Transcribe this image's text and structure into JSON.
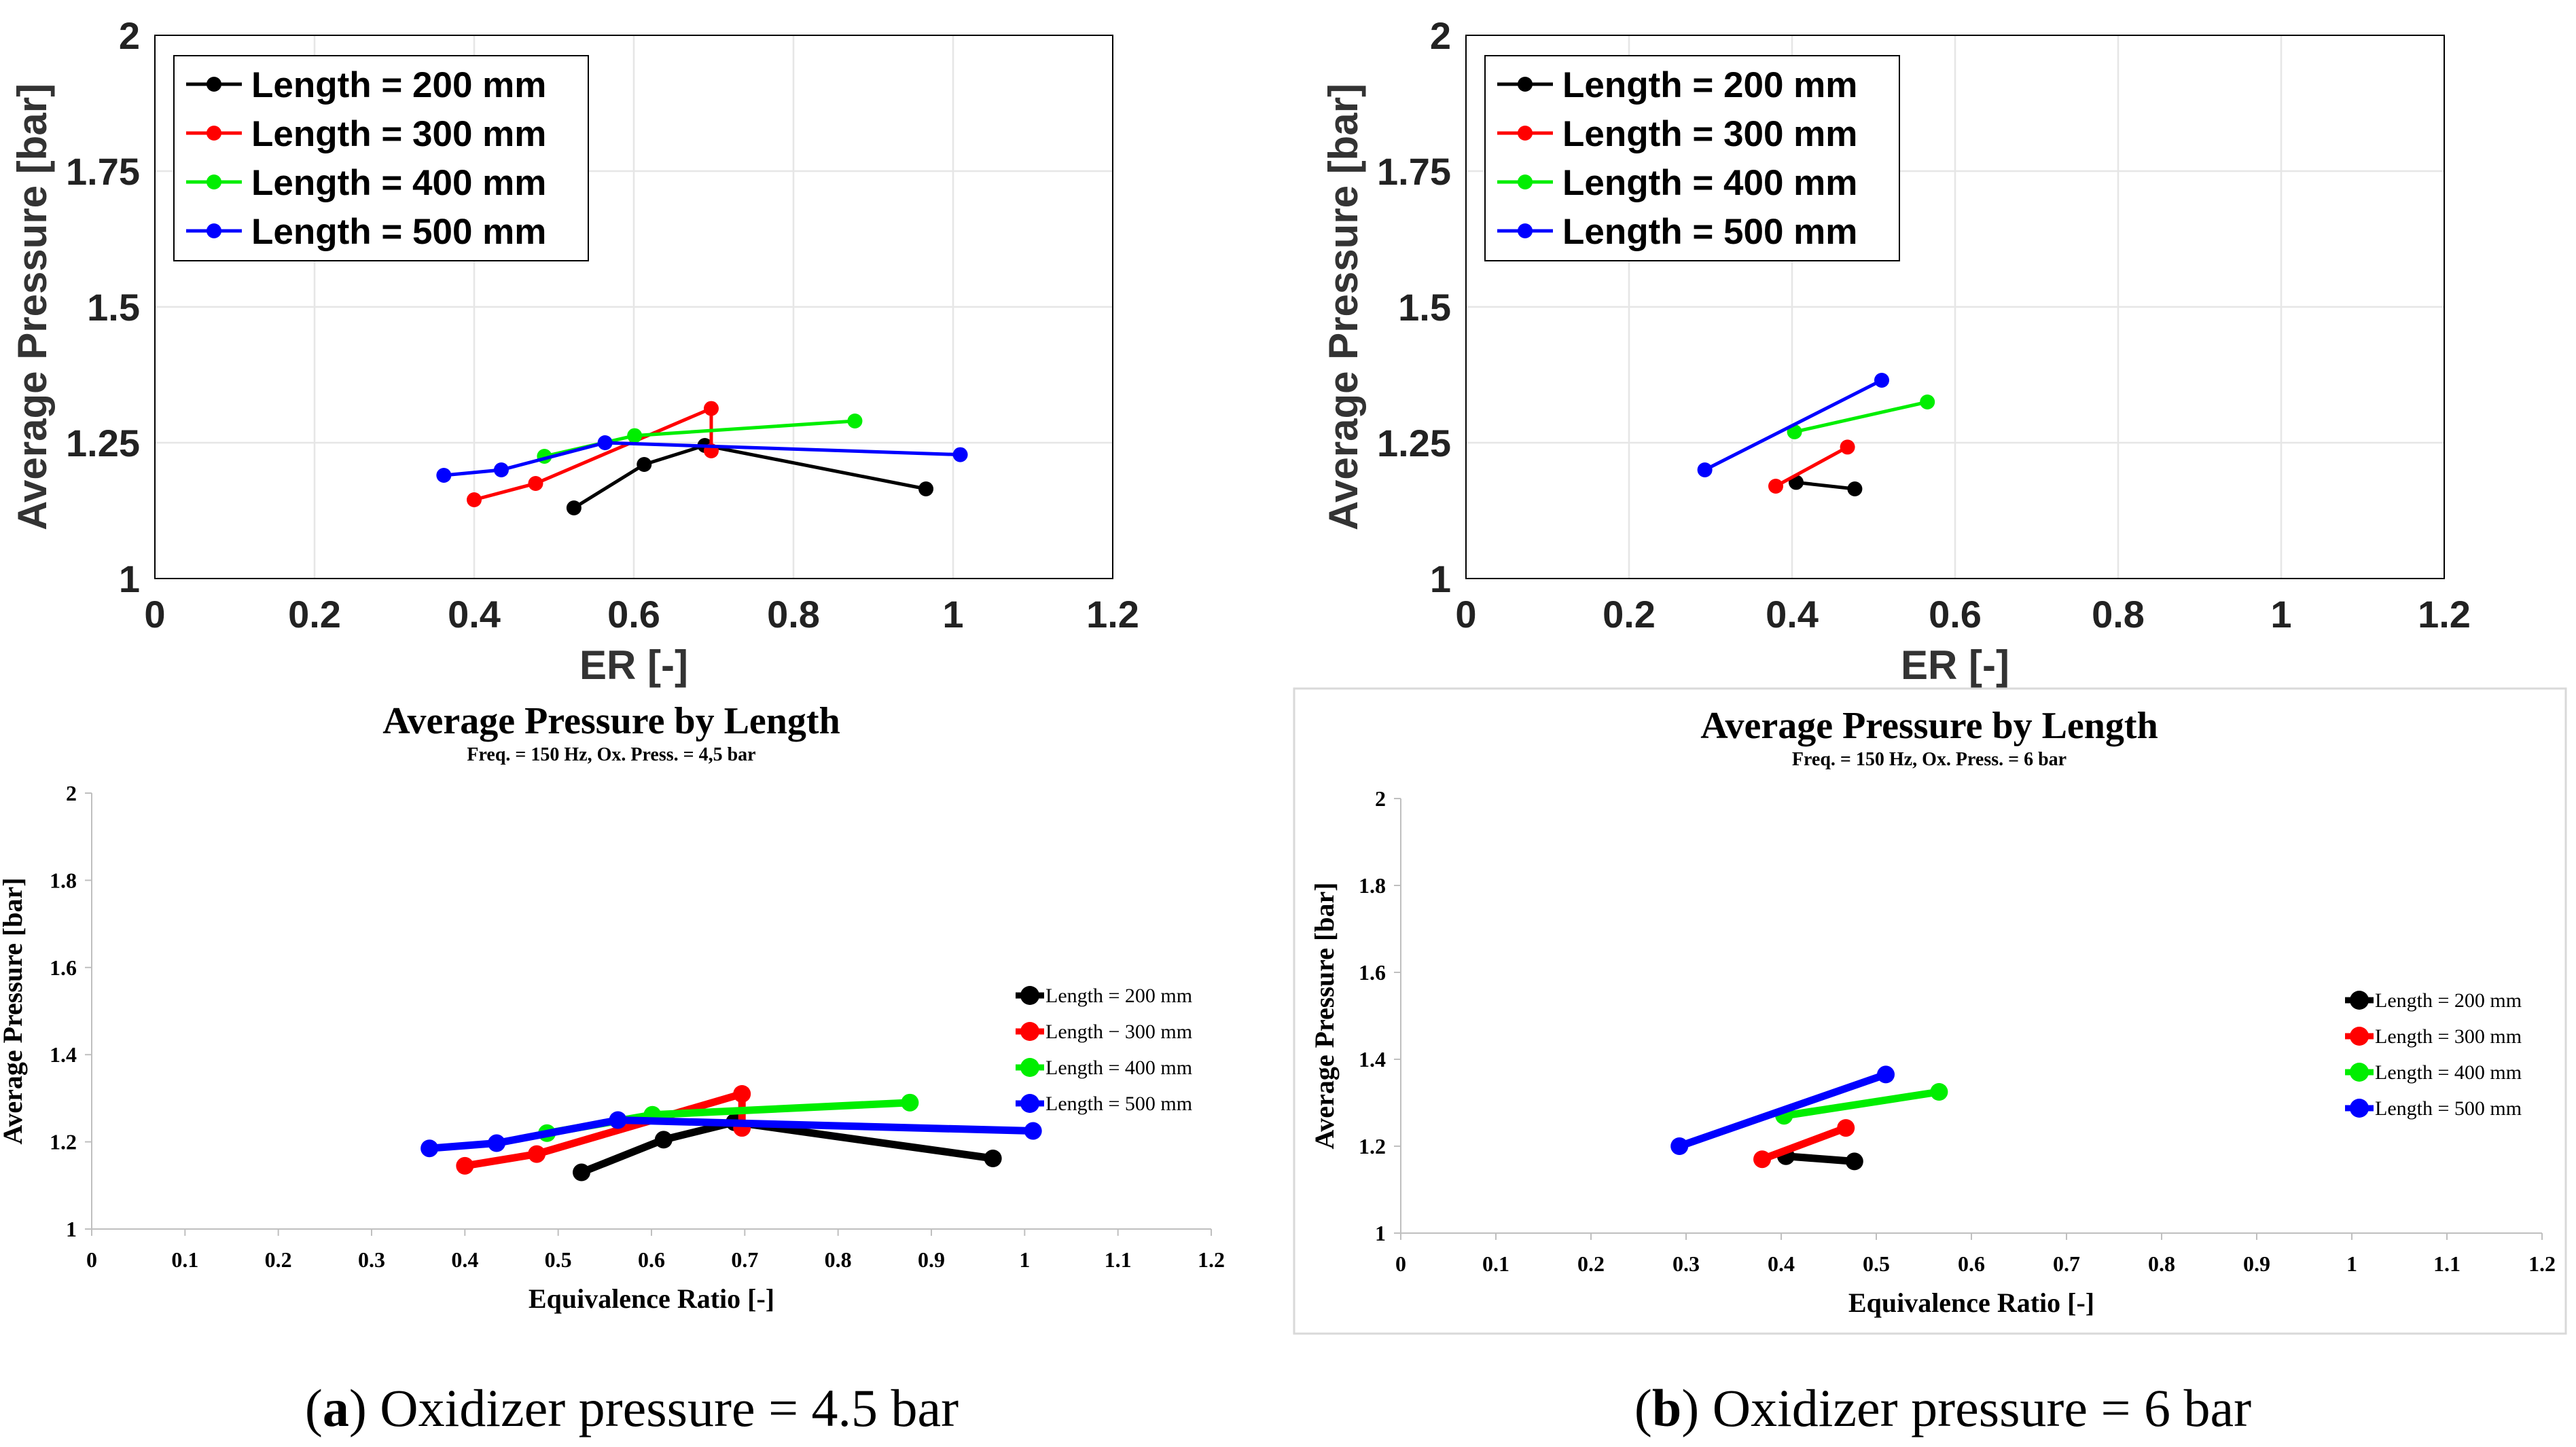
{
  "captions": {
    "a_letter": "a",
    "a_text": ") Oxidizer pressure = 4.5 bar",
    "a_open": "(",
    "b_letter": "b",
    "b_text": ") Oxidizer pressure = 6 bar",
    "b_open": "("
  },
  "chart_data": [
    {
      "id": "matlab-a",
      "type": "line",
      "title": "",
      "xlabel": "ER [-]",
      "ylabel": "Average Pressure [bar]",
      "xlim": [
        0,
        1.2
      ],
      "ylim": [
        1,
        2
      ],
      "xticks": [
        "0",
        "0.2",
        "0.4",
        "0.6",
        "0.8",
        "1",
        "1.2"
      ],
      "yticks": [
        "1",
        "1.25",
        "1.5",
        "1.75",
        "2"
      ],
      "grid": true,
      "legend_position": "top-left",
      "series": [
        {
          "name": "Length = 200 mm",
          "color": "#000000",
          "x": [
            0.525,
            0.613,
            0.689,
            0.966
          ],
          "y": [
            1.13,
            1.21,
            1.245,
            1.165
          ]
        },
        {
          "name": "Length = 300 mm",
          "color": "#ff0000",
          "x": [
            0.4,
            0.477,
            0.697,
            0.697
          ],
          "y": [
            1.145,
            1.175,
            1.313,
            1.235
          ]
        },
        {
          "name": "Length = 400 mm",
          "color": "#00ee00",
          "x": [
            0.488,
            0.601,
            0.877
          ],
          "y": [
            1.225,
            1.263,
            1.29
          ]
        },
        {
          "name": "Length = 500 mm",
          "color": "#0000ff",
          "x": [
            0.362,
            0.434,
            0.564,
            1.009
          ],
          "y": [
            1.19,
            1.2,
            1.25,
            1.228
          ]
        }
      ]
    },
    {
      "id": "matlab-b",
      "type": "line",
      "title": "",
      "xlabel": "ER [-]",
      "ylabel": "Average Pressure [bar]",
      "xlim": [
        0,
        1.2
      ],
      "ylim": [
        1,
        2
      ],
      "xticks": [
        "0",
        "0.2",
        "0.4",
        "0.6",
        "0.8",
        "1",
        "1.2"
      ],
      "yticks": [
        "1",
        "1.25",
        "1.5",
        "1.75",
        "2"
      ],
      "grid": true,
      "legend_position": "top-left",
      "series": [
        {
          "name": "Length = 200 mm",
          "color": "#000000",
          "x": [
            0.405,
            0.477
          ],
          "y": [
            1.177,
            1.165
          ]
        },
        {
          "name": "Length = 300 mm",
          "color": "#ff0000",
          "x": [
            0.38,
            0.468
          ],
          "y": [
            1.17,
            1.242
          ]
        },
        {
          "name": "Length = 400 mm",
          "color": "#00ee00",
          "x": [
            0.403,
            0.566
          ],
          "y": [
            1.27,
            1.325
          ]
        },
        {
          "name": "Length = 500 mm",
          "color": "#0000ff",
          "x": [
            0.293,
            0.51
          ],
          "y": [
            1.2,
            1.365
          ]
        }
      ]
    },
    {
      "id": "excel-a",
      "type": "line",
      "title": "Average Pressure by Length",
      "subtitle": "Freq. = 150 Hz, Ox. Press. = 4,5 bar",
      "xlabel": "Equivalence Ratio [-]",
      "ylabel": "Average Pressure [bar]",
      "xlim": [
        0,
        1.2
      ],
      "ylim": [
        1,
        2
      ],
      "xticks": [
        "0",
        "0.1",
        "0.2",
        "0.3",
        "0.4",
        "0.5",
        "0.6",
        "0.7",
        "0.8",
        "0.9",
        "1",
        "1.1",
        "1.2"
      ],
      "yticks": [
        "1",
        "1.2",
        "1.4",
        "1.6",
        "1.8",
        "2"
      ],
      "grid": false,
      "legend_position": "right",
      "series": [
        {
          "name": "Length = 200 mm",
          "color": "#000000",
          "x": [
            0.525,
            0.613,
            0.689,
            0.966
          ],
          "y": [
            1.13,
            1.205,
            1.245,
            1.162
          ]
        },
        {
          "name": "Length − 300 mm",
          "color": "#ff0000",
          "x": [
            0.4,
            0.477,
            0.697,
            0.697
          ],
          "y": [
            1.145,
            1.172,
            1.31,
            1.232
          ]
        },
        {
          "name": "Length = 400 mm",
          "color": "#00ee00",
          "x": [
            0.488,
            0.601,
            0.877
          ],
          "y": [
            1.22,
            1.262,
            1.29
          ]
        },
        {
          "name": "Length = 500 mm",
          "color": "#0000ff",
          "x": [
            0.362,
            0.434,
            0.564,
            1.009
          ],
          "y": [
            1.185,
            1.197,
            1.25,
            1.225
          ]
        }
      ]
    },
    {
      "id": "excel-b",
      "type": "line",
      "title": "Average Pressure by Length",
      "subtitle": "Freq. = 150 Hz, Ox. Press. = 6 bar",
      "xlabel": "Equivalence Ratio [-]",
      "ylabel": "Average Pressure [bar]",
      "xlim": [
        0,
        1.2
      ],
      "ylim": [
        1,
        2
      ],
      "xticks": [
        "0",
        "0.1",
        "0.2",
        "0.3",
        "0.4",
        "0.5",
        "0.6",
        "0.7",
        "0.8",
        "0.9",
        "1",
        "1.1",
        "1.2"
      ],
      "yticks": [
        "1",
        "1.2",
        "1.4",
        "1.6",
        "1.8",
        "2"
      ],
      "grid": false,
      "legend_position": "right",
      "series": [
        {
          "name": "Length = 200 mm",
          "color": "#000000",
          "x": [
            0.405,
            0.477
          ],
          "y": [
            1.177,
            1.165
          ]
        },
        {
          "name": "Length = 300 mm",
          "color": "#ff0000",
          "x": [
            0.38,
            0.468
          ],
          "y": [
            1.17,
            1.242
          ]
        },
        {
          "name": "Length = 400 mm",
          "color": "#00ee00",
          "x": [
            0.403,
            0.566
          ],
          "y": [
            1.27,
            1.325
          ]
        },
        {
          "name": "Length = 500 mm",
          "color": "#0000ff",
          "x": [
            0.293,
            0.51
          ],
          "y": [
            1.2,
            1.365
          ]
        }
      ]
    }
  ]
}
